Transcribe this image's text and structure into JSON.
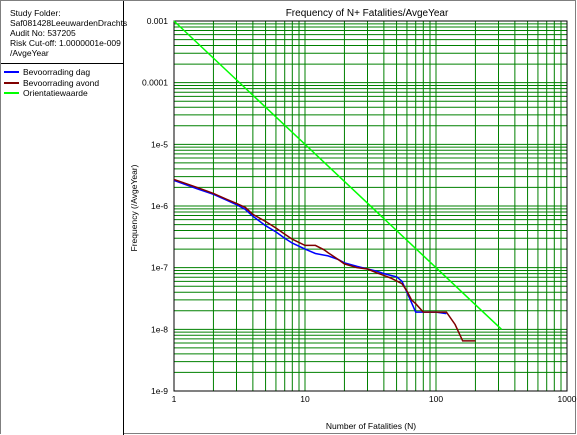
{
  "study_info": {
    "folder_label": "Study Folder:",
    "folder_value": "Saf081428LeeuwardenDrachts",
    "audit": "Audit No: 537205",
    "risk_cutoff": "Risk Cut-off: 1.0000001e-009",
    "risk_cutoff_unit": "/AvgeYear"
  },
  "colors": {
    "grid": "#008000",
    "series_dag": "#0000ff",
    "series_avond": "#800000",
    "orientatie": "#00ff00"
  },
  "chart_data": {
    "type": "line",
    "title": "Frequency of N+ Fatalities/AvgeYear",
    "xlabel": "Number of Fatalities (N)",
    "ylabel": "Frequency (/AvgeYear)",
    "x_scale": "log",
    "y_scale": "log",
    "xlim": [
      1,
      1000
    ],
    "ylim": [
      1e-09,
      0.001
    ],
    "grid": true,
    "legend_position": "left panel",
    "x_tick_labels": [
      "1",
      "10",
      "100",
      "1000"
    ],
    "y_tick_labels": [
      "0.001",
      "0.0001",
      "1e-5",
      "1e-6",
      "1e-7",
      "1e-8",
      "1e-9"
    ],
    "series": [
      {
        "name": "Bevoorrading dag",
        "color": "#0000ff",
        "x": [
          1,
          1.5,
          2,
          2.5,
          3,
          3.5,
          4,
          5,
          6,
          7,
          8,
          10,
          12,
          15,
          18,
          20,
          25,
          30,
          35,
          40,
          45,
          50,
          55,
          60,
          70,
          80,
          100,
          120
        ],
        "y": [
          2.6e-06,
          1.9e-06,
          1.55e-06,
          1.25e-06,
          1.05e-06,
          8.8e-07,
          6.8e-07,
          4.8e-07,
          3.8e-07,
          3e-07,
          2.5e-07,
          2e-07,
          1.7e-07,
          1.55e-07,
          1.35e-07,
          1.2e-07,
          1.05e-07,
          9.5e-08,
          8.8e-08,
          8e-08,
          7.5e-08,
          7.1e-08,
          6e-08,
          4e-08,
          1.9e-08,
          1.9e-08,
          1.9e-08,
          1.8e-08
        ]
      },
      {
        "name": "Bevoorrading avond",
        "color": "#800000",
        "x": [
          1,
          1.5,
          2,
          2.5,
          3,
          3.5,
          4,
          5,
          6,
          7,
          8,
          10,
          12,
          14,
          15,
          18,
          20,
          25,
          30,
          35,
          40,
          45,
          50,
          55,
          60,
          65,
          70,
          80,
          100,
          120,
          140,
          160,
          200
        ],
        "y": [
          2.7e-06,
          2e-06,
          1.6e-06,
          1.3e-06,
          1.1e-06,
          9.5e-07,
          7.3e-07,
          5.6e-07,
          4.4e-07,
          3.5e-07,
          2.9e-07,
          2.3e-07,
          2.3e-07,
          1.95e-07,
          1.75e-07,
          1.35e-07,
          1.15e-07,
          1e-07,
          9.5e-08,
          8.3e-08,
          7.5e-08,
          6.8e-08,
          6.1e-08,
          5.5e-08,
          4.2e-08,
          3e-08,
          2.6e-08,
          1.9e-08,
          1.9e-08,
          1.9e-08,
          1.2e-08,
          6.5e-09,
          6.5e-09
        ]
      },
      {
        "name": "Orientatiewaarde",
        "color": "#00ff00",
        "x": [
          1,
          316.23
        ],
        "y": [
          0.001,
          1e-08
        ]
      }
    ]
  }
}
